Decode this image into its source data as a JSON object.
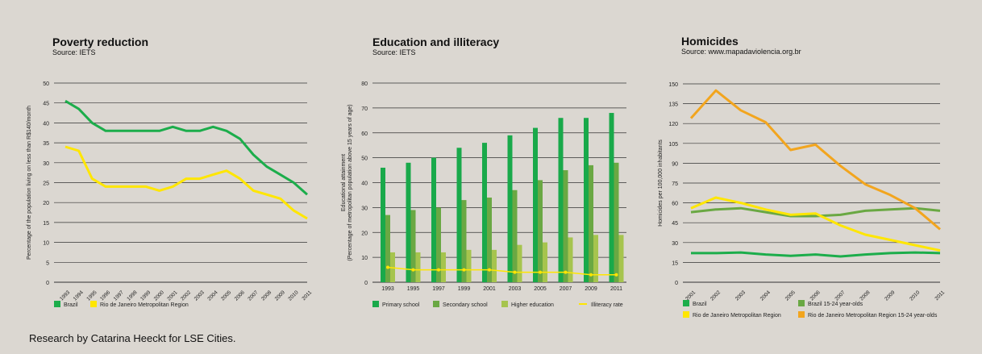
{
  "footer": "Research by Catarina Heeckt for LSE Cities.",
  "charts": [
    {
      "id": "poverty",
      "title": "Poverty reduction",
      "source": "Source: IETS",
      "chart_data": {
        "type": "line",
        "title": "Poverty reduction",
        "ylabel": "Percentage of the population living on less than R$140/month",
        "ylim": [
          0,
          50
        ],
        "yticks": [
          0,
          5,
          10,
          15,
          20,
          25,
          30,
          35,
          40,
          45,
          50
        ],
        "categories": [
          "1993",
          "1994",
          "1995",
          "1996",
          "1997",
          "1998",
          "1999",
          "2000",
          "2001",
          "2002",
          "2003",
          "2004",
          "2005",
          "2006",
          "2007",
          "2008",
          "2009",
          "2010",
          "2011"
        ],
        "series": [
          {
            "name": "Brazil",
            "color": "#1cad4b",
            "values": [
              45.5,
              43.5,
              40,
              38,
              38,
              38,
              38,
              38,
              39,
              38,
              38,
              39,
              38,
              36,
              32,
              29,
              27,
              25,
              22
            ]
          },
          {
            "name": "Rio de Janeiro Metropolitan Region",
            "color": "#ffe600",
            "values": [
              34,
              33,
              26,
              24,
              24,
              24,
              24,
              23,
              24,
              26,
              26,
              27,
              28,
              26,
              23,
              22,
              21,
              18,
              16
            ]
          }
        ]
      }
    },
    {
      "id": "education",
      "title": "Education and illiteracy",
      "source": "Source: IETS",
      "chart_data": {
        "type": "bar",
        "title": "Education and illiteracy",
        "ylabel": "Educational attainment (Percentage of metropolitan population above 15 years of age)",
        "ylim": [
          0,
          80
        ],
        "yticks": [
          0,
          10,
          20,
          30,
          40,
          50,
          60,
          70,
          80
        ],
        "categories": [
          "1993",
          "1995",
          "1997",
          "1999",
          "2001",
          "2003",
          "2005",
          "2007",
          "2009",
          "2011"
        ],
        "series": [
          {
            "name": "Primary school",
            "color": "#19a94a",
            "values": [
              46,
              48,
              50,
              54,
              56,
              59,
              62,
              66,
              66,
              68
            ]
          },
          {
            "name": "Secondary school",
            "color": "#6aa843",
            "values": [
              27,
              29,
              30,
              33,
              34,
              37,
              41,
              45,
              47,
              48
            ]
          },
          {
            "name": "Higher education",
            "color": "#a6c44e",
            "values": [
              12,
              12,
              12,
              13,
              13,
              15,
              16,
              18,
              19,
              19
            ]
          },
          {
            "name": "Illiteracy rate",
            "color": "#ffe600",
            "type": "line",
            "values": [
              6,
              5,
              5,
              5,
              5,
              4,
              4,
              4,
              3,
              3
            ]
          }
        ]
      }
    },
    {
      "id": "homicides",
      "title": "Homicides",
      "source": "Source: www.mapadaviolencia.org.br",
      "chart_data": {
        "type": "line",
        "title": "Homicides",
        "ylabel": "Homicides per 100,000 inhabitants",
        "ylim": [
          0,
          150
        ],
        "yticks": [
          0,
          15,
          30,
          45,
          60,
          75,
          90,
          105,
          120,
          135,
          150
        ],
        "categories": [
          "2001",
          "2002",
          "2003",
          "2004",
          "2005",
          "2006",
          "2007",
          "2008",
          "2009",
          "2010",
          "2011"
        ],
        "series": [
          {
            "name": "Brazil",
            "color": "#1cad4b",
            "values": [
              22,
              22,
              22.5,
              21,
              20,
              21,
              19.5,
              21,
              22,
              22.5,
              22
            ]
          },
          {
            "name": "Brazil 15-24 year-olds",
            "color": "#6aa843",
            "values": [
              53,
              55,
              56,
              53,
              50,
              50,
              51,
              54,
              55,
              56,
              54
            ]
          },
          {
            "name": "Rio de Janeiro Metropolitan Region",
            "color": "#ffe600",
            "values": [
              56,
              64,
              60,
              55,
              51,
              52,
              43,
              36,
              32,
              28,
              24
            ]
          },
          {
            "name": "Rio de Janeiro Metropolitan Region 15-24 year-olds",
            "color": "#f2a51e",
            "values": [
              124,
              145,
              130,
              121,
              100,
              104,
              88,
              74,
              66,
              56,
              40
            ]
          }
        ]
      }
    }
  ]
}
